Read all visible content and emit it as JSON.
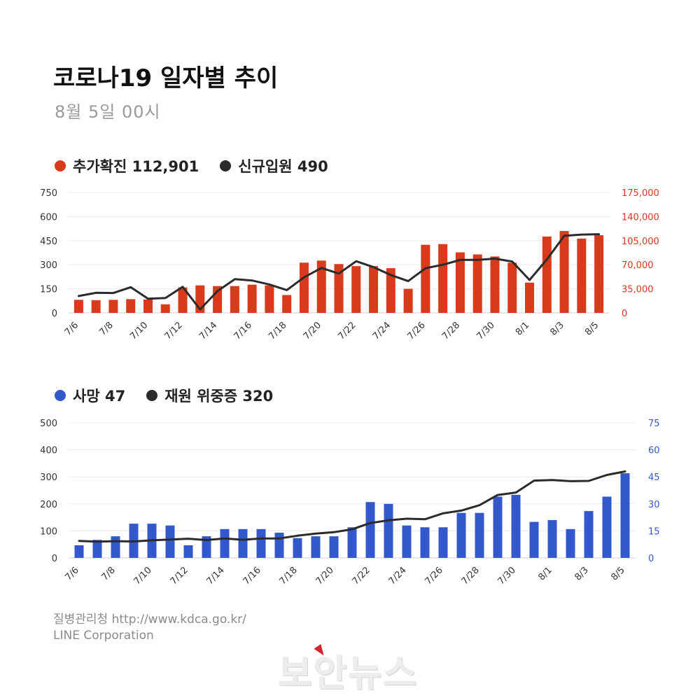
{
  "header": {
    "title": "코로나19 일자별 추이",
    "subtitle": "8월 5일 00시"
  },
  "legend_top": [
    {
      "name": "추가확진 112,901",
      "color": "#d93a1c"
    },
    {
      "name": "신규입원 490",
      "color": "#2b2b2b"
    }
  ],
  "legend_bottom": [
    {
      "name": "사망 47",
      "color": "#3358cc"
    },
    {
      "name": "재원 위중증 320",
      "color": "#2b2b2b"
    }
  ],
  "footer": {
    "source": "질병관리청  http://www.kdca.go.kr/",
    "company": "LINE Corporation"
  },
  "watermark": "보안뉴스",
  "chart_data": [
    {
      "type": "bar",
      "categories": [
        "7/6",
        "7/7",
        "7/8",
        "7/9",
        "7/10",
        "7/11",
        "7/12",
        "7/13",
        "7/14",
        "7/15",
        "7/16",
        "7/17",
        "7/18",
        "7/19",
        "7/20",
        "7/21",
        "7/22",
        "7/23",
        "7/24",
        "7/25",
        "7/26",
        "7/27",
        "7/28",
        "7/29",
        "7/30",
        "7/31",
        "8/1",
        "8/2",
        "8/3",
        "8/4",
        "8/5"
      ],
      "x_tick_labels": [
        "7/6",
        "7/8",
        "7/10",
        "7/12",
        "7/14",
        "7/16",
        "7/18",
        "7/20",
        "7/22",
        "7/24",
        "7/26",
        "7/28",
        "7/30",
        "8/1",
        "8/3",
        "8/5"
      ],
      "y_left_ticks": [
        "0",
        "150",
        "300",
        "450",
        "600",
        "750"
      ],
      "y_right_ticks": [
        "0",
        "35,000",
        "70,000",
        "105,000",
        "140,000",
        "175,000"
      ],
      "ylim_left": [
        0,
        750
      ],
      "ylim_right": [
        0,
        175000
      ],
      "series": [
        {
          "name": "추가확진",
          "type": "bar",
          "axis": "right",
          "color": "#d93a1c",
          "values": [
            19000,
            18500,
            19000,
            20000,
            19500,
            12500,
            37000,
            40000,
            39000,
            39000,
            41000,
            40000,
            26000,
            73000,
            76000,
            71000,
            68000,
            68000,
            65000,
            35000,
            99000,
            100000,
            88000,
            85000,
            82000,
            73000,
            44000,
            111000,
            119000,
            108000,
            112901
          ]
        },
        {
          "name": "신규입원",
          "type": "line",
          "axis": "left",
          "color": "#2b2b2b",
          "values": [
            105,
            125,
            124,
            160,
            88,
            93,
            162,
            22,
            135,
            210,
            202,
            177,
            142,
            222,
            280,
            245,
            322,
            285,
            236,
            198,
            278,
            300,
            330,
            330,
            338,
            320,
            205,
            333,
            480,
            488,
            490
          ]
        }
      ]
    },
    {
      "type": "bar",
      "categories": [
        "7/6",
        "7/7",
        "7/8",
        "7/9",
        "7/10",
        "7/11",
        "7/12",
        "7/13",
        "7/14",
        "7/15",
        "7/16",
        "7/17",
        "7/18",
        "7/19",
        "7/20",
        "7/21",
        "7/22",
        "7/23",
        "7/24",
        "7/25",
        "7/26",
        "7/27",
        "7/28",
        "7/29",
        "7/30",
        "7/31",
        "8/1",
        "8/2",
        "8/3",
        "8/4",
        "8/5"
      ],
      "x_tick_labels": [
        "7/6",
        "7/8",
        "7/10",
        "7/12",
        "7/14",
        "7/16",
        "7/18",
        "7/20",
        "7/22",
        "7/24",
        "7/26",
        "7/28",
        "7/30",
        "8/1",
        "8/3",
        "8/5"
      ],
      "y_left_ticks": [
        "0",
        "100",
        "200",
        "300",
        "400",
        "500"
      ],
      "y_right_ticks": [
        "0",
        "15",
        "30",
        "45",
        "60",
        "75"
      ],
      "ylim_left": [
        0,
        500
      ],
      "ylim_right": [
        0,
        75
      ],
      "series": [
        {
          "name": "사망",
          "type": "bar",
          "axis": "right",
          "color": "#3358cc",
          "values": [
            7,
            10,
            12,
            19,
            19,
            18,
            7,
            12,
            16,
            16,
            16,
            14,
            11,
            12,
            12,
            17,
            31,
            30,
            18,
            17,
            17,
            25,
            25,
            34,
            35,
            20,
            21,
            16,
            26,
            34,
            47
          ]
        },
        {
          "name": "재원 위중증",
          "type": "line",
          "axis": "left",
          "color": "#2b2b2b",
          "values": [
            63,
            60,
            62,
            61,
            65,
            68,
            71,
            66,
            72,
            67,
            72,
            72,
            82,
            90,
            95,
            106,
            129,
            139,
            145,
            143,
            165,
            175,
            195,
            233,
            242,
            286,
            288,
            284,
            285,
            307,
            320
          ]
        }
      ]
    }
  ]
}
